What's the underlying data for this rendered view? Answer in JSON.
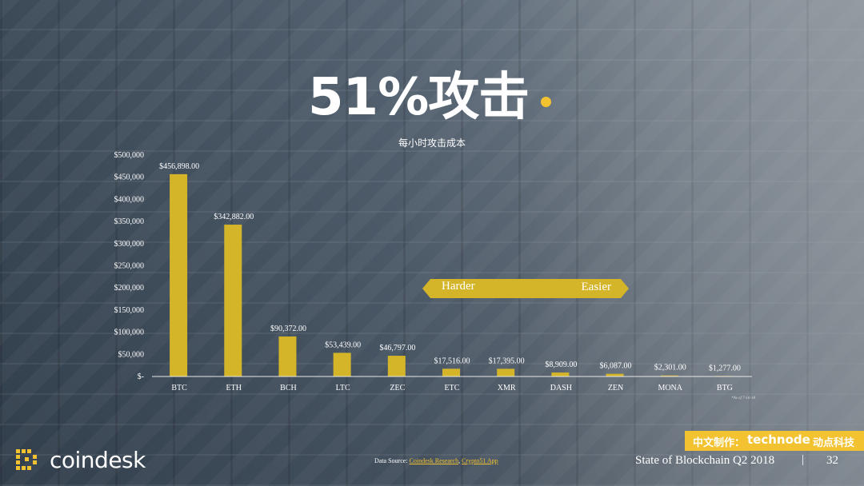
{
  "slide": {
    "title": "51%攻击",
    "subtitle": "每小时攻击成本",
    "note": "*As of 7-16-18",
    "arrow": {
      "left_label": "Harder",
      "right_label": "Easier"
    },
    "brand": {
      "prefix": "中文制作：",
      "name": "technode",
      "suffix": "动点科技"
    },
    "logo_text": "coindesk",
    "source": {
      "prefix": "Data Source: ",
      "link1": "Coindesk Research",
      "sep": ", ",
      "link2": "Crypto51 App"
    },
    "footer_title": "State of Blockchain Q2 2018",
    "footer_sep": "|",
    "page_number": "32"
  },
  "colors": {
    "accent": "#f2c230",
    "bar": "#d4b52a",
    "text": "#ffffff"
  },
  "chart_data": {
    "type": "bar",
    "title": "51%攻击",
    "subtitle": "每小时攻击成本",
    "categories": [
      "BTC",
      "ETH",
      "BCH",
      "LTC",
      "ZEC",
      "ETC",
      "XMR",
      "DASH",
      "ZEN",
      "MONA",
      "BTG"
    ],
    "values": [
      456898,
      342882,
      90372,
      53439,
      46797,
      17516,
      17395,
      8909,
      6087,
      2301,
      1277
    ],
    "data_labels": [
      "$456,898.00",
      "$342,882.00",
      "$90,372.00",
      "$53,439.00",
      "$46,797.00",
      "$17,516.00",
      "$17,395.00",
      "$8,909.00",
      "$6,087.00",
      "$2,301.00",
      "$1,277.00"
    ],
    "yticks": [
      0,
      50000,
      100000,
      150000,
      200000,
      250000,
      300000,
      350000,
      400000,
      450000,
      500000
    ],
    "ytick_labels": [
      "$-",
      "$50,000",
      "$100,000",
      "$150,000",
      "$200,000",
      "$250,000",
      "$300,000",
      "$350,000",
      "$400,000",
      "$450,000",
      "$500,000"
    ],
    "ylim": [
      0,
      500000
    ],
    "grid": false,
    "legend": "none"
  }
}
